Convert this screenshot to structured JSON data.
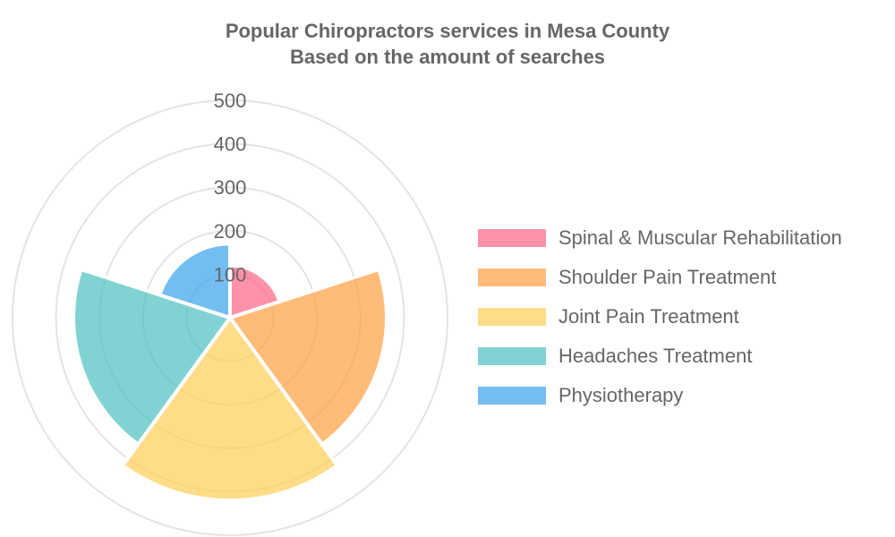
{
  "chart_data": {
    "type": "polarArea",
    "title": [
      "Popular Chiropractors services in Mesa County",
      "Based on the amount of searches"
    ],
    "series": [
      {
        "name": "Spinal & Muscular Rehabilitation",
        "value": 120,
        "color": "#ff6384"
      },
      {
        "name": "Shoulder Pain Treatment",
        "value": 360,
        "color": "#ff9f40"
      },
      {
        "name": "Joint Pain Treatment",
        "value": 420,
        "color": "#ffcd56"
      },
      {
        "name": "Headaches Treatment",
        "value": 360,
        "color": "#4bc0c0"
      },
      {
        "name": "Physiotherapy",
        "value": 170,
        "color": "#36a2eb"
      }
    ],
    "radial_ticks": [
      "100",
      "200",
      "300",
      "400",
      "500"
    ],
    "rmax": 500,
    "grid": true,
    "legend_position": "right"
  }
}
